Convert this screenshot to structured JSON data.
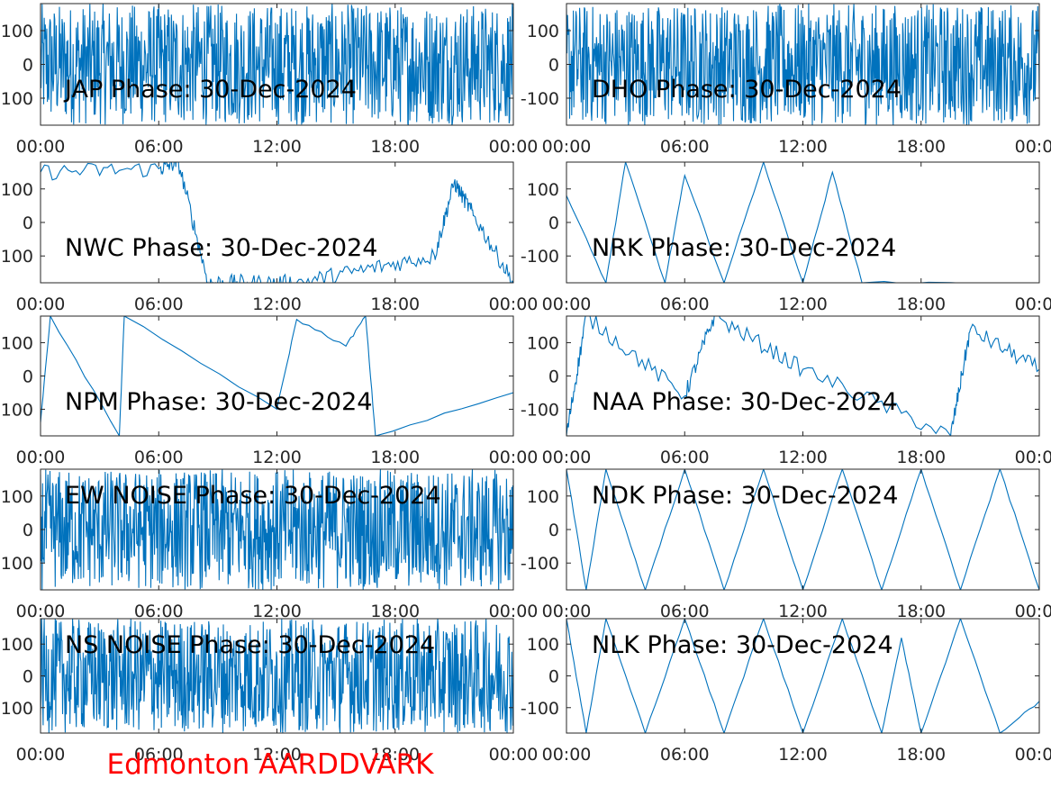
{
  "footer": {
    "text": "Edmonton AARDDVARK",
    "color": "#ff0000"
  },
  "style": {
    "line_color": "#0072bd",
    "axes_color": "#262626"
  },
  "chart_data": [
    {
      "type": "line",
      "title": "JAP Phase: 30-Dec-2024",
      "pattern": "noise",
      "xlim": [
        "00:00",
        "24:00"
      ],
      "ylim": [
        -180,
        180
      ],
      "xtick_labels": [
        "00:00",
        "06:00",
        "12:00",
        "18:00",
        "00:00"
      ],
      "ytick_values": [
        100,
        0,
        -100
      ],
      "ytick_labels": [
        "100",
        "0",
        "-100"
      ],
      "series": [
        {
          "x": [
            "00:00",
            "02:00",
            "04:00",
            "06:00",
            "08:00",
            "10:00",
            "12:00",
            "14:00",
            "16:00",
            "18:00",
            "20:00",
            "22:00",
            "24:00"
          ],
          "y": [
            40,
            -120,
            150,
            -60,
            90,
            -170,
            20,
            130,
            -100,
            60,
            -40,
            170,
            -20
          ]
        }
      ]
    },
    {
      "type": "line",
      "title": "DHO Phase: 30-Dec-2024",
      "pattern": "noise",
      "xlim": [
        "00:00",
        "24:00"
      ],
      "ylim": [
        -180,
        180
      ],
      "xtick_labels": [
        "00:00",
        "06:00",
        "12:00",
        "18:00",
        "00:00"
      ],
      "ytick_values": [
        100,
        0,
        -100
      ],
      "ytick_labels": [
        "100",
        "0",
        "-100"
      ],
      "series": [
        {
          "x": [
            "00:00",
            "02:00",
            "04:00",
            "06:00",
            "08:00",
            "10:00",
            "12:00",
            "14:00",
            "16:00",
            "18:00",
            "20:00",
            "22:00",
            "24:00"
          ],
          "y": [
            -20,
            110,
            -150,
            60,
            -80,
            170,
            -30,
            90,
            -120,
            40,
            -160,
            70,
            10
          ]
        }
      ]
    },
    {
      "type": "line",
      "title": "NWC Phase: 30-Dec-2024",
      "pattern": "mixed",
      "xlim": [
        "00:00",
        "24:00"
      ],
      "ylim": [
        -180,
        180
      ],
      "xtick_labels": [
        "00:00",
        "06:00",
        "12:00",
        "18:00",
        "00:00"
      ],
      "ytick_values": [
        100,
        0,
        -100
      ],
      "ytick_labels": [
        "100",
        "0",
        "-100"
      ],
      "series": [
        {
          "x": [
            "00:00",
            "06:00",
            "07:00",
            "08:30",
            "10:30",
            "13:00",
            "16:30",
            "20:00",
            "21:00",
            "22:00",
            "24:00"
          ],
          "y": [
            150,
            160,
            180,
            -180,
            -180,
            -180,
            -140,
            -100,
            120,
            20,
            -180
          ]
        }
      ]
    },
    {
      "type": "line",
      "title": "NRK Phase: 30-Dec-2024",
      "pattern": "sawtooth",
      "xlim": [
        "00:00",
        "24:00"
      ],
      "ylim": [
        -180,
        180
      ],
      "xtick_labels": [
        "00:00",
        "06:00",
        "12:00",
        "18:00",
        "00:00"
      ],
      "ytick_values": [
        100,
        0,
        -100
      ],
      "ytick_labels": [
        "100",
        "0",
        "-100"
      ],
      "series": [
        {
          "x": [
            "00:00",
            "02:00",
            "03:00",
            "05:00",
            "06:00",
            "08:00",
            "10:00",
            "12:00",
            "13:30",
            "15:00",
            "24:00"
          ],
          "y": [
            80,
            -180,
            180,
            -180,
            140,
            -180,
            180,
            -180,
            150,
            -180,
            -180
          ]
        }
      ]
    },
    {
      "type": "line",
      "title": "NPM Phase: 30-Dec-2024",
      "pattern": "sawtooth",
      "xlim": [
        "00:00",
        "24:00"
      ],
      "ylim": [
        -180,
        180
      ],
      "xtick_labels": [
        "00:00",
        "06:00",
        "12:00",
        "18:00",
        "00:00"
      ],
      "ytick_values": [
        100,
        0,
        -100
      ],
      "ytick_labels": [
        "100",
        "0",
        "-100"
      ],
      "series": [
        {
          "x": [
            "00:00",
            "00:30",
            "04:00",
            "04:15",
            "12:00",
            "13:00",
            "15:30",
            "16:30",
            "17:00",
            "24:00"
          ],
          "y": [
            -140,
            180,
            -180,
            180,
            -100,
            170,
            90,
            180,
            -180,
            -50
          ]
        }
      ]
    },
    {
      "type": "line",
      "title": "NAA Phase: 30-Dec-2024",
      "pattern": "mixed",
      "xlim": [
        "00:00",
        "24:00"
      ],
      "ylim": [
        -180,
        180
      ],
      "xtick_labels": [
        "00:00",
        "06:00",
        "12:00",
        "18:00",
        "00:00"
      ],
      "ytick_values": [
        100,
        0,
        -100
      ],
      "ytick_labels": [
        "100",
        "0",
        "-100"
      ],
      "series": [
        {
          "x": [
            "00:00",
            "01:00",
            "06:00",
            "07:30",
            "12:00",
            "19:30",
            "20:30",
            "24:00"
          ],
          "y": [
            -180,
            180,
            -60,
            180,
            20,
            -180,
            140,
            20
          ]
        }
      ]
    },
    {
      "type": "line",
      "title": "EW NOISE Phase: 30-Dec-2024",
      "pattern": "noise",
      "xlim": [
        "00:00",
        "24:00"
      ],
      "ylim": [
        -180,
        180
      ],
      "xtick_labels": [
        "00:00",
        "06:00",
        "12:00",
        "18:00",
        "00:00"
      ],
      "ytick_values": [
        100,
        0,
        -100
      ],
      "ytick_labels": [
        "100",
        "0",
        "-100"
      ],
      "series": [
        {
          "x": [
            "00:00",
            "02:00",
            "04:00",
            "06:00",
            "08:00",
            "10:00",
            "12:00",
            "14:00",
            "16:00",
            "18:00",
            "20:00",
            "22:00",
            "24:00"
          ],
          "y": [
            10,
            -100,
            140,
            -50,
            80,
            -160,
            60,
            120,
            -90,
            30,
            -140,
            100,
            0
          ]
        }
      ]
    },
    {
      "type": "line",
      "title": "NDK Phase: 30-Dec-2024",
      "pattern": "sawtooth",
      "xlim": [
        "00:00",
        "24:00"
      ],
      "ylim": [
        -180,
        180
      ],
      "xtick_labels": [
        "00:00",
        "06:00",
        "12:00",
        "18:00",
        "00:00"
      ],
      "ytick_values": [
        100,
        0,
        -100
      ],
      "ytick_labels": [
        "100",
        "0",
        "-100"
      ],
      "series": [
        {
          "x": [
            "00:00",
            "01:00",
            "02:00",
            "04:00",
            "06:00",
            "08:00",
            "10:00",
            "12:00",
            "14:00",
            "16:00",
            "18:00",
            "20:00",
            "22:00",
            "24:00"
          ],
          "y": [
            180,
            -180,
            180,
            -180,
            180,
            -180,
            180,
            -180,
            180,
            -180,
            180,
            -180,
            180,
            -180
          ]
        }
      ]
    },
    {
      "type": "line",
      "title": "NS NOISE Phase: 30-Dec-2024",
      "pattern": "noise",
      "xlim": [
        "00:00",
        "24:00"
      ],
      "ylim": [
        -180,
        180
      ],
      "xtick_labels": [
        "00:00",
        "06:00",
        "12:00",
        "18:00",
        "00:00"
      ],
      "ytick_values": [
        100,
        0,
        -100
      ],
      "ytick_labels": [
        "100",
        "0",
        "-100"
      ],
      "series": [
        {
          "x": [
            "00:00",
            "02:00",
            "04:00",
            "06:00",
            "08:00",
            "10:00",
            "12:00",
            "14:00",
            "16:00",
            "18:00",
            "20:00",
            "22:00",
            "24:00"
          ],
          "y": [
            -30,
            120,
            -150,
            70,
            -90,
            160,
            -10,
            100,
            -130,
            50,
            -170,
            90,
            30
          ]
        }
      ]
    },
    {
      "type": "line",
      "title": "NLK Phase: 30-Dec-2024",
      "pattern": "sawtooth",
      "xlim": [
        "00:00",
        "24:00"
      ],
      "ylim": [
        -180,
        180
      ],
      "xtick_labels": [
        "00:00",
        "06:00",
        "12:00",
        "18:00",
        "00:00"
      ],
      "ytick_values": [
        100,
        0,
        -100
      ],
      "ytick_labels": [
        "100",
        "0",
        "-100"
      ],
      "series": [
        {
          "x": [
            "00:00",
            "01:00",
            "02:00",
            "04:00",
            "06:00",
            "08:00",
            "10:00",
            "12:00",
            "14:00",
            "16:00",
            "17:00",
            "18:00",
            "20:00",
            "22:00",
            "24:00"
          ],
          "y": [
            180,
            -180,
            180,
            -180,
            180,
            -180,
            180,
            -180,
            180,
            -180,
            120,
            -180,
            180,
            -180,
            -80
          ]
        }
      ]
    }
  ]
}
